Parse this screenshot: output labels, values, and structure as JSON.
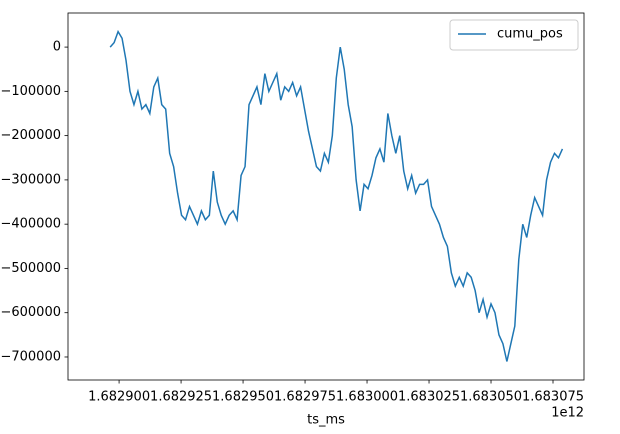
{
  "chart_data": {
    "type": "line",
    "xlabel": "ts_ms",
    "x_offset_label": "1e12",
    "legend": "upper right",
    "x": [
      1682896400000,
      1682898000000,
      1682899600000,
      1682901200000,
      1682902800000,
      1682904400000,
      1682906000000,
      1682907600000,
      1682909200000,
      1682910800000,
      1682912400000,
      1682914000000,
      1682915600000,
      1682917200000,
      1682918800000,
      1682920400000,
      1682922000000,
      1682923600000,
      1682925200000,
      1682926800000,
      1682928400000,
      1682930000000,
      1682931600000,
      1682933200000,
      1682934800000,
      1682936400000,
      1682938000000,
      1682939600000,
      1682941200000,
      1682942800000,
      1682944400000,
      1682946000000,
      1682947600000,
      1682949200000,
      1682950800000,
      1682952400000,
      1682954000000,
      1682955600000,
      1682957200000,
      1682958800000,
      1682960400000,
      1682962000000,
      1682963600000,
      1682965200000,
      1682966800000,
      1682968400000,
      1682970000000,
      1682971600000,
      1682973200000,
      1682974800000,
      1682976400000,
      1682978000000,
      1682979600000,
      1682981200000,
      1682982800000,
      1682984400000,
      1682986000000,
      1682987600000,
      1682989200000,
      1682990800000,
      1682992400000,
      1682994000000,
      1682995600000,
      1682997200000,
      1682998800000,
      1683000400000,
      1683002000000,
      1683003600000,
      1683005200000,
      1683006800000,
      1683008400000,
      1683010000000,
      1683011600000,
      1683013200000,
      1683014800000,
      1683016400000,
      1683018000000,
      1683019600000,
      1683021200000,
      1683022800000,
      1683024400000,
      1683026000000,
      1683027600000,
      1683029200000,
      1683030800000,
      1683032400000,
      1683034000000,
      1683035600000,
      1683037200000,
      1683038800000,
      1683040400000,
      1683042000000,
      1683043600000,
      1683045200000,
      1683046800000,
      1683048400000,
      1683050000000,
      1683051600000,
      1683053200000,
      1683054800000,
      1683056400000,
      1683058000000,
      1683059600000,
      1683061200000,
      1683062800000,
      1683064400000,
      1683066000000,
      1683067600000,
      1683069200000,
      1683070800000,
      1683072400000,
      1683074000000,
      1683075600000,
      1683077200000,
      1683078800000
    ],
    "series": [
      {
        "name": "cumu_pos",
        "color": "#1f77b4",
        "values": [
          0,
          10000,
          35000,
          20000,
          -30000,
          -100000,
          -130000,
          -100000,
          -140000,
          -130000,
          -150000,
          -90000,
          -70000,
          -130000,
          -140000,
          -240000,
          -270000,
          -330000,
          -380000,
          -390000,
          -360000,
          -380000,
          -400000,
          -370000,
          -390000,
          -380000,
          -280000,
          -350000,
          -380000,
          -400000,
          -380000,
          -370000,
          -390000,
          -290000,
          -270000,
          -130000,
          -110000,
          -90000,
          -130000,
          -60000,
          -100000,
          -80000,
          -60000,
          -120000,
          -90000,
          -100000,
          -80000,
          -110000,
          -90000,
          -140000,
          -190000,
          -230000,
          -270000,
          -280000,
          -240000,
          -260000,
          -200000,
          -70000,
          0,
          -50000,
          -130000,
          -180000,
          -300000,
          -370000,
          -310000,
          -320000,
          -290000,
          -250000,
          -230000,
          -260000,
          -150000,
          -200000,
          -240000,
          -200000,
          -280000,
          -320000,
          -290000,
          -330000,
          -310000,
          -310000,
          -300000,
          -360000,
          -380000,
          -400000,
          -430000,
          -450000,
          -510000,
          -540000,
          -520000,
          -540000,
          -510000,
          -520000,
          -550000,
          -600000,
          -570000,
          -610000,
          -580000,
          -600000,
          -650000,
          -670000,
          -710000,
          -670000,
          -630000,
          -480000,
          -400000,
          -430000,
          -380000,
          -340000,
          -360000,
          -380000,
          -300000,
          -260000,
          -240000,
          -250000,
          -230000
        ]
      }
    ],
    "xlim": [
      1682879400000,
      1683087500000
    ],
    "xticks": [
      {
        "value": 1682900000000,
        "label": "1.682900"
      },
      {
        "value": 1682925000000,
        "label": "1.682925"
      },
      {
        "value": 1682950000000,
        "label": "1.682950"
      },
      {
        "value": 1682975000000,
        "label": "1.682975"
      },
      {
        "value": 1683000000000,
        "label": "1.683000"
      },
      {
        "value": 1683025000000,
        "label": "1.683025"
      },
      {
        "value": 1683050000000,
        "label": "1.683050"
      },
      {
        "value": 1683075000000,
        "label": "1.683075"
      }
    ],
    "ylim": [
      -752000,
      77000
    ],
    "yticks": [
      0,
      {
        "value": -100000,
        "label": "−100000"
      },
      {
        "value": -200000,
        "label": "−200000"
      },
      {
        "value": -300000,
        "label": "−300000"
      },
      {
        "value": -400000,
        "label": "−400000"
      },
      {
        "value": -500000,
        "label": "−500000"
      },
      {
        "value": -600000,
        "label": "−600000"
      },
      {
        "value": -700000,
        "label": "−700000"
      }
    ]
  }
}
